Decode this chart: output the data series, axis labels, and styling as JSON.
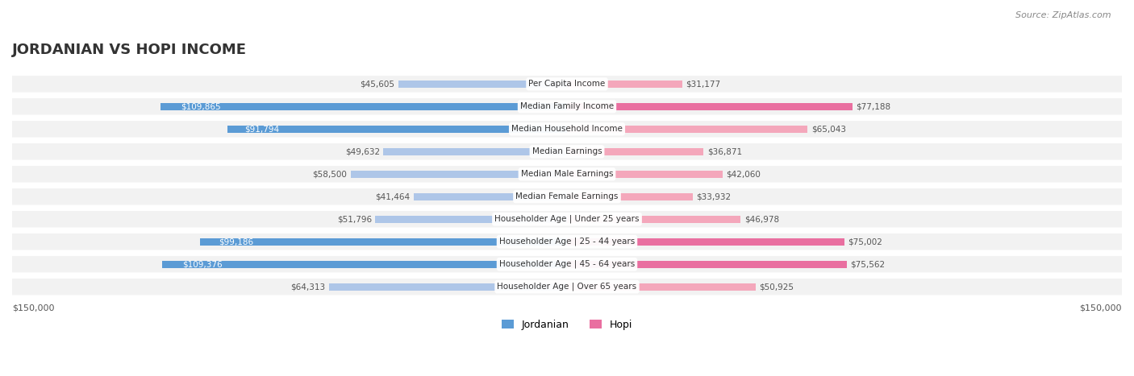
{
  "title": "JORDANIAN VS HOPI INCOME",
  "source": "Source: ZipAtlas.com",
  "categories": [
    "Per Capita Income",
    "Median Family Income",
    "Median Household Income",
    "Median Earnings",
    "Median Male Earnings",
    "Median Female Earnings",
    "Householder Age | Under 25 years",
    "Householder Age | 25 - 44 years",
    "Householder Age | 45 - 64 years",
    "Householder Age | Over 65 years"
  ],
  "jordanian_values": [
    45605,
    109865,
    91794,
    49632,
    58500,
    41464,
    51796,
    99186,
    109376,
    64313
  ],
  "hopi_values": [
    31177,
    77188,
    65043,
    36871,
    42060,
    33932,
    46978,
    75002,
    75562,
    50925
  ],
  "jordanian_labels": [
    "$45,605",
    "$109,865",
    "$91,794",
    "$49,632",
    "$58,500",
    "$41,464",
    "$51,796",
    "$99,186",
    "$109,376",
    "$64,313"
  ],
  "hopi_labels": [
    "$31,177",
    "$77,188",
    "$65,043",
    "$36,871",
    "$42,060",
    "$33,932",
    "$46,978",
    "$75,002",
    "$75,562",
    "$50,925"
  ],
  "jordanian_color_light": "#aec6e8",
  "jordanian_color_dark": "#5b9bd5",
  "hopi_color_light": "#f4a7bb",
  "hopi_color_dark": "#e96fa0",
  "max_value": 150000,
  "background_color": "#ffffff",
  "row_bg_color": "#f0f0f0",
  "row_bg_alt": "#ffffff",
  "title_fontsize": 14,
  "label_fontsize": 8,
  "category_fontsize": 8
}
